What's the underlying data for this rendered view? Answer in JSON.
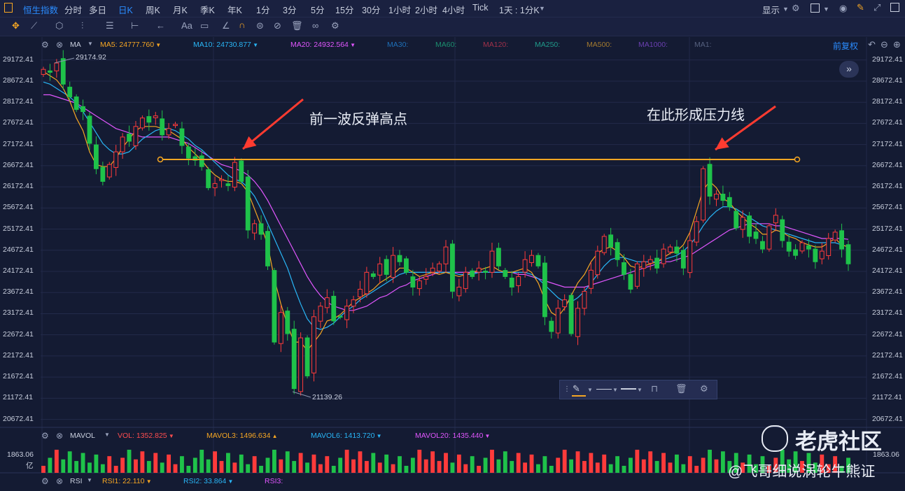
{
  "topbar": {
    "tabs": [
      "恒生指数",
      "分时",
      "多日",
      "日K",
      "周K",
      "月K",
      "季K",
      "年K",
      "1分",
      "3分",
      "5分",
      "15分",
      "30分",
      "1小时",
      "2小时",
      "4小时",
      "Tick"
    ],
    "active_tab": "日K",
    "interval_select": "1天 : 1分K",
    "display_label": "显示"
  },
  "ma_legend": {
    "title": "MA",
    "items": [
      {
        "label": "MA5: 24777.760",
        "color": "#f5a623"
      },
      {
        "label": "MA10: 24730.877",
        "color": "#29b6f6"
      },
      {
        "label": "MA20: 24932.564",
        "color": "#e056fd"
      },
      {
        "label": "MA30:",
        "color": "#1e6fb8"
      },
      {
        "label": "MA60:",
        "color": "#1b8f6f"
      },
      {
        "label": "MA120:",
        "color": "#a0304a"
      },
      {
        "label": "MA250:",
        "color": "#1f9a8a"
      },
      {
        "label": "MA500:",
        "color": "#a37a2f"
      },
      {
        "label": "MA1000:",
        "color": "#6a3fb0"
      },
      {
        "label": "MA1:",
        "color": "#55607e"
      }
    ],
    "restore_label": "前复权"
  },
  "annotations": {
    "left_text": "前一波反弹高点",
    "right_text": "在此形成压力线",
    "high_label": "29174.92",
    "low_label": "21139.26",
    "text_color": "#ff3b30",
    "line_color": "#f5a623"
  },
  "vol_legend": {
    "title": "MAVOL",
    "items": [
      {
        "label": "VOL: 1352.825",
        "color": "#ff4d4f"
      },
      {
        "label": "MAVOL3: 1496.634",
        "color": "#f5a623"
      },
      {
        "label": "MAVOL6: 1413.720",
        "color": "#29b6f6"
      },
      {
        "label": "MAVOL20: 1435.440",
        "color": "#e056fd"
      }
    ],
    "axis_top": "1863.06",
    "axis_unit": "亿",
    "axis_right": "1863.06"
  },
  "rsi_legend": {
    "title": "RSI",
    "items": [
      {
        "label": "RSI1: 22.110",
        "color": "#f5a623"
      },
      {
        "label": "RSI2: 33.864",
        "color": "#29b6f6"
      },
      {
        "label": "RSI3:",
        "color": "#e056fd"
      }
    ]
  },
  "watermark": {
    "brand": "老虎社区",
    "author": "@飞哥细说涡轮牛熊证"
  },
  "colors": {
    "up": "#ff3b3b",
    "down": "#1fc24a",
    "background": "#141b33",
    "grid": "#222a4a",
    "accent": "#2a8cff"
  },
  "chart_data": {
    "type": "candlestick",
    "title": "恒生指数",
    "y_ticks": [
      "29172.41",
      "28672.41",
      "28172.41",
      "27672.41",
      "27172.41",
      "26672.41",
      "26172.41",
      "25672.41",
      "25172.41",
      "24672.41",
      "24172.41",
      "23672.41",
      "23172.41",
      "22672.41",
      "22172.41",
      "21672.41",
      "21172.41",
      "20672.41"
    ],
    "ylim": [
      20500,
      29350
    ],
    "resistance_level": 26820,
    "close": [
      28950,
      28880,
      29100,
      28600,
      28300,
      28000,
      27950,
      27200,
      26600,
      26300,
      26700,
      27000,
      27350,
      27250,
      27600,
      27800,
      27700,
      27850,
      27400,
      27550,
      27650,
      27150,
      26850,
      26800,
      26650,
      26150,
      26250,
      26350,
      26200,
      26750,
      26300,
      25150,
      25300,
      25050,
      24300,
      22500,
      23200,
      22700,
      21400,
      22600,
      21700,
      23100,
      23350,
      23550,
      23000,
      23100,
      23350,
      23500,
      23750,
      24150,
      24050,
      24350,
      24100,
      24550,
      24400,
      24150,
      23800,
      23950,
      24050,
      24250,
      24350,
      24750,
      23700,
      23800,
      24150,
      24050,
      24250,
      24150,
      24650,
      24300,
      24050,
      23800,
      24050,
      24450,
      24550,
      24300,
      23100,
      22750,
      23300,
      23500,
      22700,
      23300,
      23700,
      24200,
      24650,
      25000,
      24750,
      24450,
      24100,
      23750,
      24350,
      24400,
      24450,
      24250,
      24700,
      24750,
      24600,
      24250,
      24900,
      25350,
      26600,
      25950,
      26000,
      25850,
      25700,
      25200,
      25450,
      25000,
      24950,
      24700,
      25250,
      25500,
      24900,
      24650,
      24550,
      24850,
      24700,
      24400,
      24650,
      24950,
      25100,
      24700,
      24350
    ],
    "ma5": [
      28900,
      28800,
      28700,
      28500,
      28200,
      27800,
      27500,
      27000,
      26700,
      26650,
      26650,
      26850,
      27100,
      27300,
      27500,
      27600,
      27600,
      27600,
      27550,
      27500,
      27400,
      27300,
      27100,
      26950,
      26800,
      26600,
      26450,
      26350,
      26300,
      26300,
      26250,
      26050,
      25650,
      25250,
      24800,
      24000,
      23400,
      22900,
      22500,
      22500,
      22300,
      22500,
      22700,
      23000,
      23050,
      23150,
      23300,
      23450,
      23550,
      23650,
      23750,
      23900,
      24000,
      24100,
      24250,
      24250,
      24150,
      24050,
      24100,
      24150,
      24100,
      24150,
      24100,
      24050,
      24100,
      24150,
      24200,
      24250,
      24300,
      24200,
      24150,
      24150,
      24200,
      24250,
      24150,
      23900,
      23500,
      23200,
      23100,
      23300,
      23600,
      23900,
      24100,
      24400,
      24600,
      24700,
      24750,
      24650,
      24500,
      24300,
      24250,
      24300,
      24350,
      24400,
      24500,
      24600,
      24650,
      24800,
      25100,
      25600,
      26100,
      26300,
      26150,
      25900,
      25800,
      25600,
      25450,
      25300,
      25200,
      25050,
      25050,
      25150,
      25100,
      25000,
      24950,
      24850,
      24800,
      24750,
      24750,
      24850,
      24950,
      24800,
      24750
    ],
    "ma10": [
      28650,
      28600,
      28500,
      28400,
      28300,
      28150,
      27950,
      27700,
      27450,
      27200,
      27050,
      26950,
      26950,
      27000,
      27150,
      27300,
      27400,
      27500,
      27550,
      27550,
      27500,
      27400,
      27300,
      27150,
      27050,
      26900,
      26750,
      26600,
      26450,
      26350,
      26300,
      26150,
      25950,
      25650,
      25300,
      24950,
      24600,
      24250,
      23800,
      23400,
      23050,
      22850,
      22800,
      22850,
      22950,
      23100,
      23250,
      23350,
      23500,
      23600,
      23700,
      23800,
      23900,
      24000,
      24100,
      24150,
      24150,
      24150,
      24150,
      24150,
      24150,
      24150,
      24150,
      24100,
      24100,
      24100,
      24150,
      24150,
      24150,
      24150,
      24150,
      24150,
      24150,
      24150,
      24100,
      24000,
      23850,
      23700,
      23550,
      23450,
      23450,
      23550,
      23700,
      23900,
      24100,
      24300,
      24450,
      24500,
      24500,
      24450,
      24400,
      24400,
      24400,
      24400,
      24450,
      24500,
      24550,
      24650,
      24800,
      25000,
      25250,
      25450,
      25600,
      25700,
      25700,
      25650,
      25550,
      25450,
      25350,
      25250,
      25200,
      25150,
      25100,
      25050,
      25000,
      24950,
      24900,
      24850,
      24850,
      24850,
      24850,
      24800,
      24750
    ],
    "ma20": [
      28350,
      28350,
      28300,
      28250,
      28200,
      28150,
      28050,
      27950,
      27850,
      27750,
      27650,
      27550,
      27500,
      27450,
      27400,
      27350,
      27350,
      27350,
      27350,
      27350,
      27300,
      27250,
      27200,
      27100,
      27000,
      26900,
      26800,
      26700,
      26650,
      26600,
      26550,
      26450,
      26300,
      26100,
      25850,
      25550,
      25250,
      24950,
      24650,
      24350,
      24050,
      23800,
      23600,
      23450,
      23350,
      23300,
      23250,
      23250,
      23300,
      23350,
      23450,
      23550,
      23600,
      23700,
      23800,
      23850,
      23950,
      24000,
      24050,
      24100,
      24150,
      24150,
      24150,
      24150,
      24150,
      24150,
      24150,
      24150,
      24150,
      24150,
      24150,
      24150,
      24100,
      24100,
      24050,
      24000,
      23950,
      23900,
      23850,
      23800,
      23800,
      23800,
      23800,
      23850,
      23900,
      23950,
      24000,
      24050,
      24100,
      24150,
      24200,
      24250,
      24300,
      24350,
      24400,
      24400,
      24450,
      24500,
      24550,
      24650,
      24750,
      24850,
      24950,
      25050,
      25150,
      25200,
      25250,
      25300,
      25300,
      25300,
      25300,
      25250,
      25250,
      25200,
      25150,
      25100,
      25050,
      25000,
      24950,
      24950,
      24950,
      24950,
      24930
    ]
  }
}
